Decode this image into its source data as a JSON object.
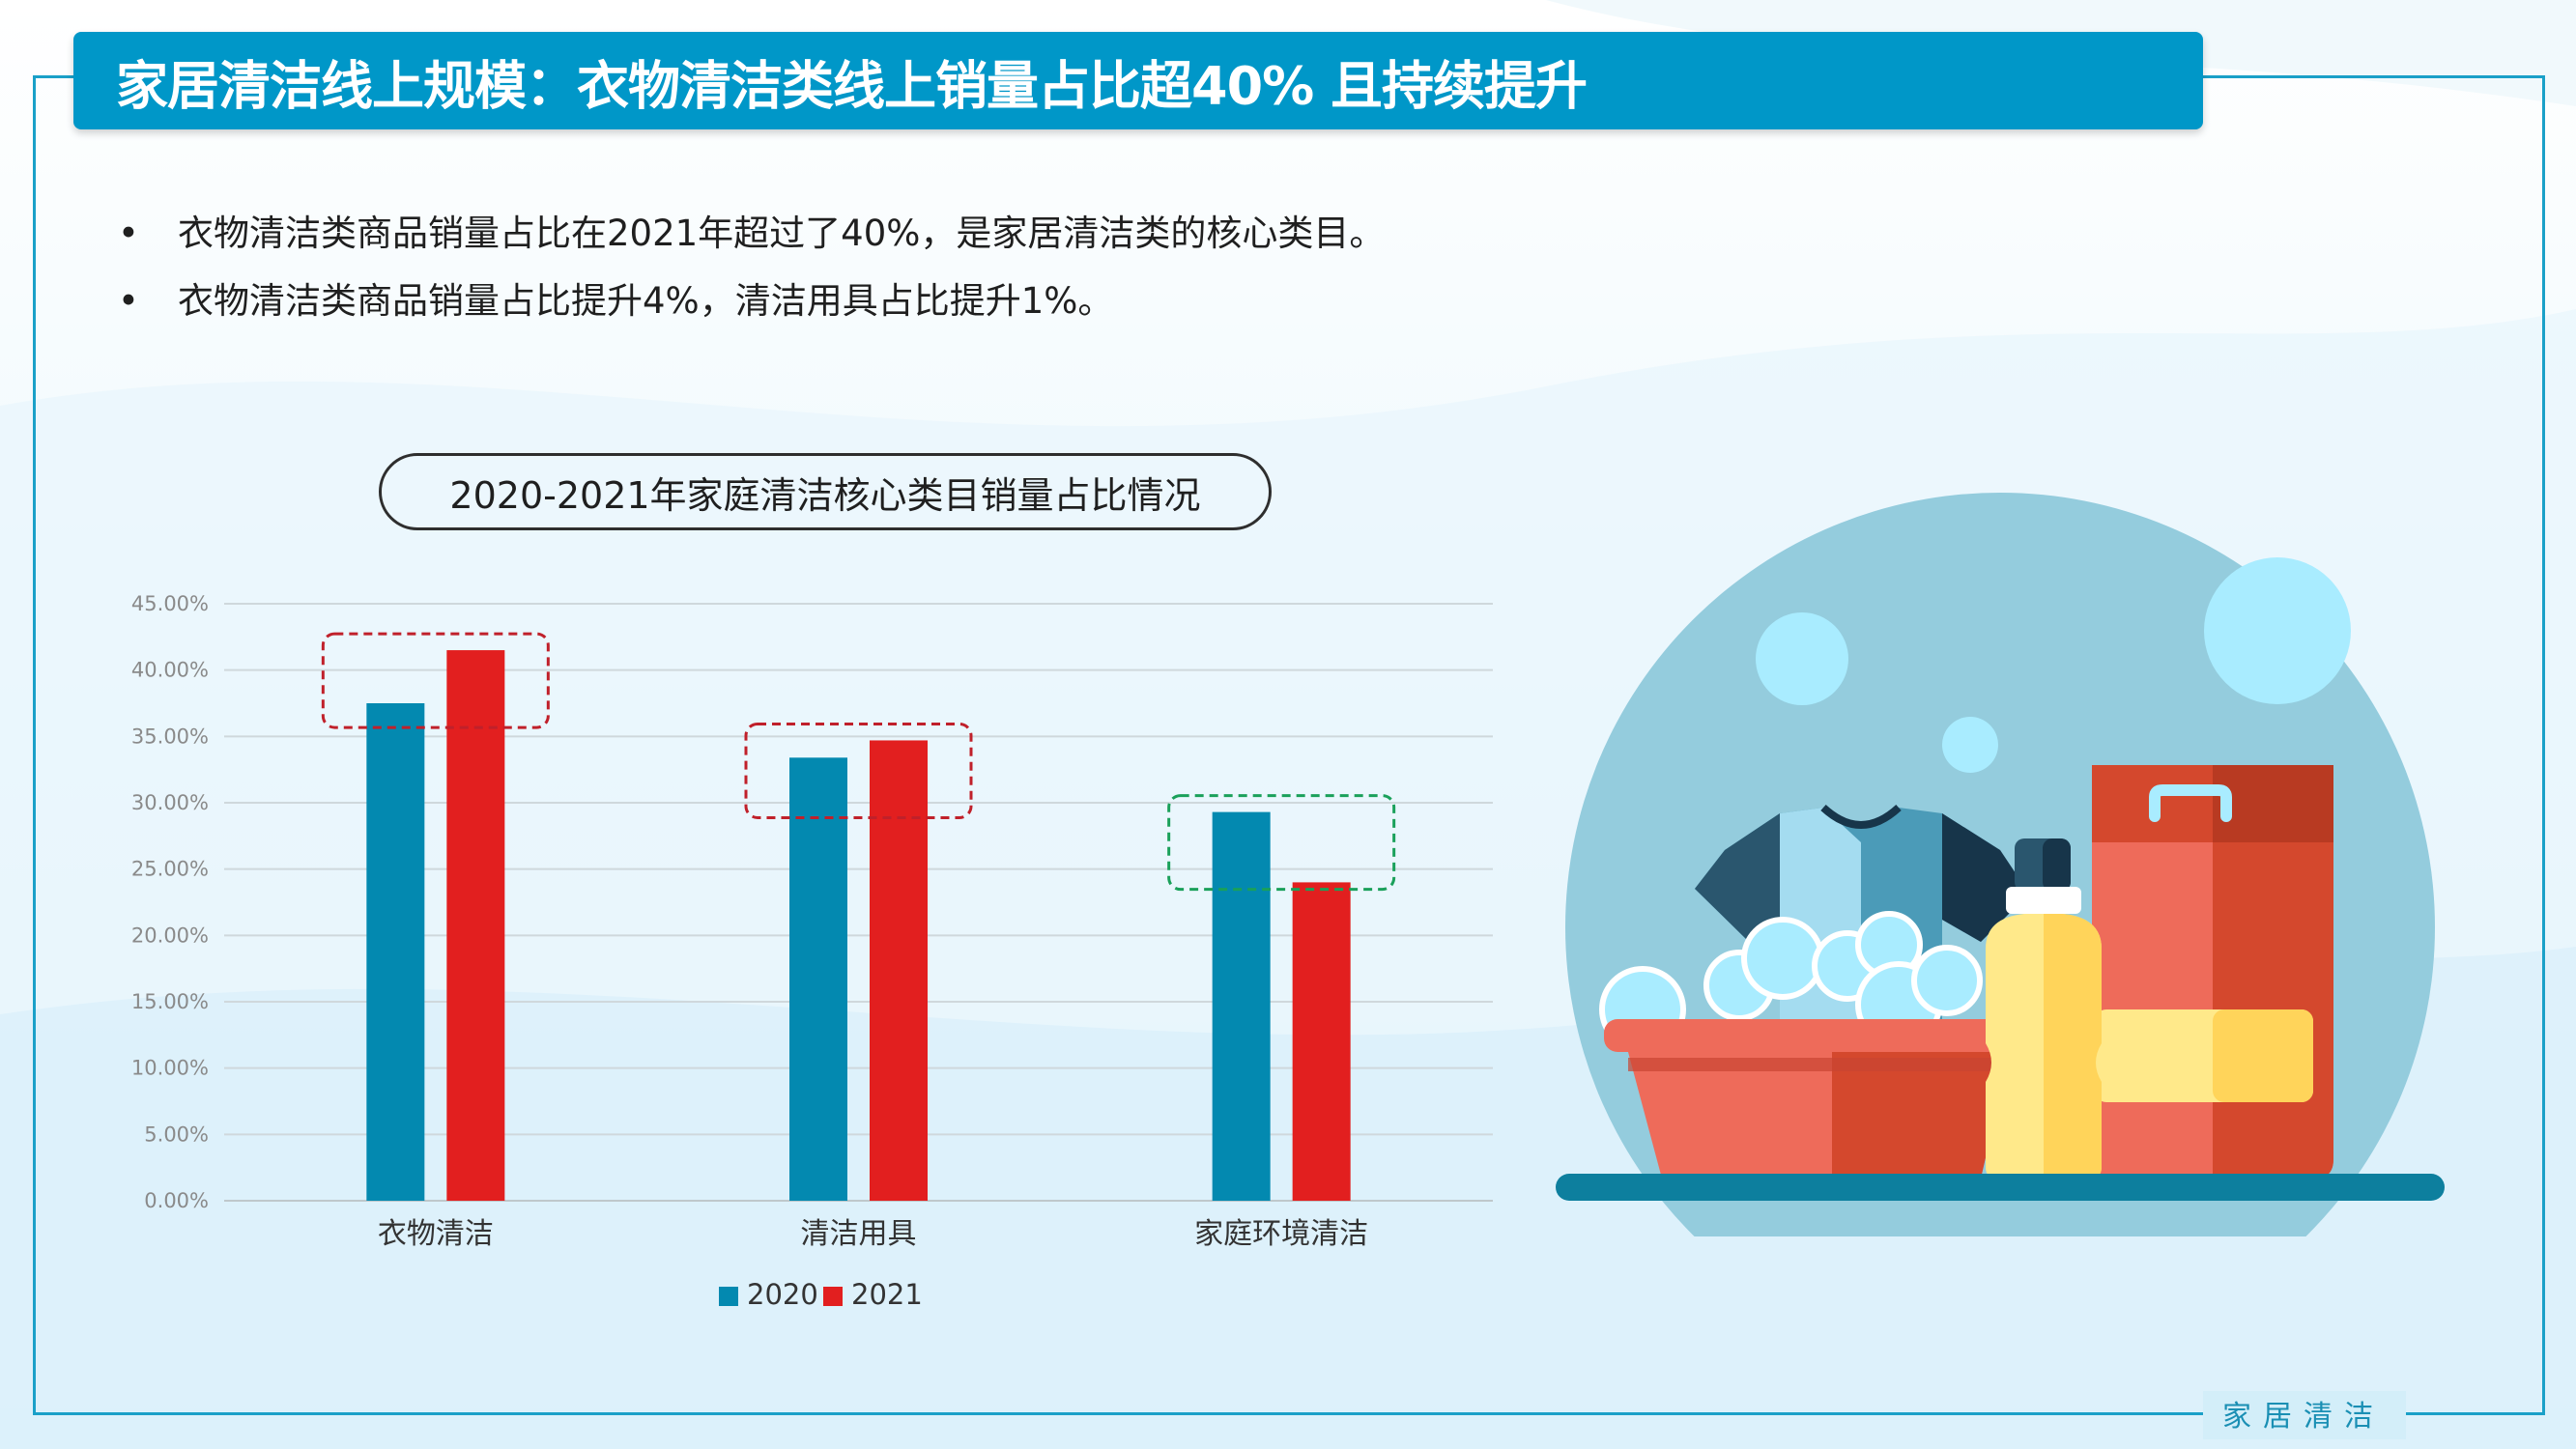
{
  "header": {
    "title": "家居清洁线上规模：衣物清洁类线上销量占比超40% 且持续提升"
  },
  "bullets": [
    "衣物清洁类商品销量占比在2021年超过了40%，是家居清洁类的核心类目。",
    "衣物清洁类商品销量占比提升4%，清洁用具占比提升1%。"
  ],
  "chart_title": "2020-2021年家庭清洁核心类目销量占比情况",
  "footer": {
    "tag": "家居清洁"
  },
  "colors": {
    "accent": "#0097c8",
    "series_2020": "#0389b0",
    "series_2021": "#e21f1f",
    "highlight_red": "#c0202a",
    "highlight_green": "#1aa05a"
  },
  "chart_data": {
    "type": "bar",
    "title": "2020-2021年家庭清洁核心类目销量占比情况",
    "categories": [
      "衣物清洁",
      "清洁用具",
      "家庭环境清洁"
    ],
    "series": [
      {
        "name": "2020",
        "values": [
          37.5,
          33.4,
          29.3
        ]
      },
      {
        "name": "2021",
        "values": [
          41.5,
          34.7,
          24.0
        ]
      }
    ],
    "ylim": [
      0,
      45
    ],
    "yticks": [
      "0.00%",
      "5.00%",
      "10.00%",
      "15.00%",
      "20.00%",
      "25.00%",
      "30.00%",
      "35.00%",
      "40.00%",
      "45.00%"
    ],
    "grid": true,
    "legend": "bottom",
    "highlight_boxes": [
      {
        "category": "衣物清洁",
        "color": "red"
      },
      {
        "category": "清洁用具",
        "color": "red"
      },
      {
        "category": "家庭环境清洁",
        "color": "green"
      }
    ]
  },
  "illustration": {
    "icons": [
      "laundry-basin-icon",
      "t-shirt-icon",
      "soap-bubbles-icon",
      "detergent-bottle-icon",
      "detergent-bag-icon"
    ]
  }
}
